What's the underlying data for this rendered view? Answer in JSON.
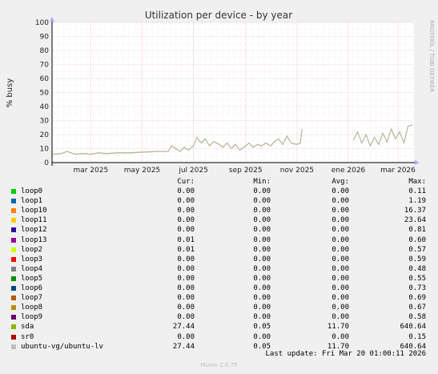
{
  "chart_data": {
    "type": "line",
    "title": "Utilization per device - by year",
    "ylabel": "% busy",
    "ylim": [
      0,
      100
    ],
    "yticks": [
      0,
      10,
      20,
      30,
      40,
      50,
      60,
      70,
      80,
      90,
      100
    ],
    "xlim": [
      "2025-01-14",
      "2026-03-20"
    ],
    "xticks": [
      {
        "date": "2025-03-01",
        "label": "mar 2025"
      },
      {
        "date": "2025-05-01",
        "label": "may 2025"
      },
      {
        "date": "2025-07-01",
        "label": "jul 2025"
      },
      {
        "date": "2025-09-01",
        "label": "sep 2025"
      },
      {
        "date": "2025-11-01",
        "label": "nov 2025"
      },
      {
        "date": "2026-01-01",
        "label": "ene 2026"
      },
      {
        "date": "2026-03-01",
        "label": "mar 2026"
      }
    ],
    "grid": true,
    "series": [
      {
        "name": "sda",
        "color": "#99a320",
        "segments": [
          [
            [
              "2025-01-15",
              6
            ],
            [
              "2025-01-25",
              6.5
            ],
            [
              "2025-02-01",
              8
            ],
            [
              "2025-02-10",
              6
            ],
            [
              "2025-02-20",
              6.5
            ],
            [
              "2025-03-01",
              6
            ],
            [
              "2025-03-10",
              7
            ],
            [
              "2025-03-20",
              6.5
            ],
            [
              "2025-04-01",
              7
            ],
            [
              "2025-04-15",
              7
            ],
            [
              "2025-05-01",
              7.5
            ],
            [
              "2025-05-20",
              8
            ],
            [
              "2025-06-01",
              8
            ],
            [
              "2025-06-05",
              12
            ],
            [
              "2025-06-10",
              10
            ],
            [
              "2025-06-15",
              8
            ],
            [
              "2025-06-20",
              11
            ],
            [
              "2025-06-25",
              9
            ],
            [
              "2025-07-01",
              12
            ],
            [
              "2025-07-05",
              18
            ],
            [
              "2025-07-10",
              14
            ],
            [
              "2025-07-15",
              17
            ],
            [
              "2025-07-20",
              12
            ],
            [
              "2025-07-25",
              15
            ],
            [
              "2025-08-01",
              13
            ],
            [
              "2025-08-05",
              11
            ],
            [
              "2025-08-10",
              14
            ],
            [
              "2025-08-15",
              10
            ],
            [
              "2025-08-20",
              13
            ],
            [
              "2025-08-25",
              9
            ],
            [
              "2025-09-01",
              12
            ],
            [
              "2025-09-05",
              14
            ],
            [
              "2025-09-10",
              11
            ],
            [
              "2025-09-15",
              13
            ],
            [
              "2025-09-20",
              12
            ],
            [
              "2025-09-25",
              14
            ],
            [
              "2025-10-01",
              12
            ],
            [
              "2025-10-05",
              15
            ],
            [
              "2025-10-10",
              17
            ],
            [
              "2025-10-15",
              13
            ],
            [
              "2025-10-20",
              19
            ],
            [
              "2025-10-25",
              14
            ],
            [
              "2025-11-01",
              13
            ],
            [
              "2025-11-05",
              14
            ],
            [
              "2025-11-07",
              24
            ]
          ],
          [
            [
              "2026-01-07",
              16
            ],
            [
              "2026-01-12",
              22
            ],
            [
              "2026-01-17",
              14
            ],
            [
              "2026-01-22",
              20
            ],
            [
              "2026-01-27",
              12
            ],
            [
              "2026-02-01",
              18
            ],
            [
              "2026-02-06",
              13
            ],
            [
              "2026-02-11",
              21
            ],
            [
              "2026-02-16",
              15
            ],
            [
              "2026-02-21",
              24
            ],
            [
              "2026-02-26",
              17
            ],
            [
              "2026-03-03",
              22
            ],
            [
              "2026-03-08",
              14
            ],
            [
              "2026-03-13",
              26
            ],
            [
              "2026-03-18",
              27
            ]
          ]
        ]
      },
      {
        "name": "ubuntu-vg/ubuntu-lv",
        "color": "#b8b8b8",
        "segments": [
          [
            [
              "2025-01-15",
              5.8
            ],
            [
              "2025-01-25",
              6.3
            ],
            [
              "2025-02-01",
              7.8
            ],
            [
              "2025-02-10",
              5.8
            ],
            [
              "2025-02-20",
              6.3
            ],
            [
              "2025-03-01",
              5.8
            ],
            [
              "2025-03-10",
              6.8
            ],
            [
              "2025-03-20",
              6.3
            ],
            [
              "2025-04-01",
              6.8
            ],
            [
              "2025-04-15",
              6.8
            ],
            [
              "2025-05-01",
              7.3
            ],
            [
              "2025-05-20",
              7.8
            ],
            [
              "2025-06-01",
              7.8
            ],
            [
              "2025-06-05",
              11.8
            ],
            [
              "2025-06-10",
              9.8
            ],
            [
              "2025-06-15",
              7.8
            ],
            [
              "2025-06-20",
              10.8
            ],
            [
              "2025-06-25",
              8.8
            ],
            [
              "2025-07-01",
              11.8
            ],
            [
              "2025-07-05",
              17.8
            ],
            [
              "2025-07-10",
              13.8
            ],
            [
              "2025-07-15",
              16.8
            ],
            [
              "2025-07-20",
              11.8
            ],
            [
              "2025-07-25",
              14.8
            ],
            [
              "2025-08-01",
              12.8
            ],
            [
              "2025-08-05",
              10.8
            ],
            [
              "2025-08-10",
              13.8
            ],
            [
              "2025-08-15",
              9.8
            ],
            [
              "2025-08-20",
              12.8
            ],
            [
              "2025-08-25",
              8.8
            ],
            [
              "2025-09-01",
              11.8
            ],
            [
              "2025-09-05",
              13.8
            ],
            [
              "2025-09-10",
              10.8
            ],
            [
              "2025-09-15",
              12.8
            ],
            [
              "2025-09-20",
              11.8
            ],
            [
              "2025-09-25",
              13.8
            ],
            [
              "2025-10-01",
              11.8
            ],
            [
              "2025-10-05",
              14.8
            ],
            [
              "2025-10-10",
              16.8
            ],
            [
              "2025-10-15",
              12.8
            ],
            [
              "2025-10-20",
              18.8
            ],
            [
              "2025-10-25",
              13.8
            ],
            [
              "2025-11-01",
              12.8
            ],
            [
              "2025-11-05",
              13.8
            ],
            [
              "2025-11-07",
              23.8
            ]
          ],
          [
            [
              "2026-01-07",
              15.8
            ],
            [
              "2026-01-12",
              21.8
            ],
            [
              "2026-01-17",
              13.8
            ],
            [
              "2026-01-22",
              19.8
            ],
            [
              "2026-01-27",
              11.8
            ],
            [
              "2026-02-01",
              17.8
            ],
            [
              "2026-02-06",
              12.8
            ],
            [
              "2026-02-11",
              20.8
            ],
            [
              "2026-02-16",
              14.8
            ],
            [
              "2026-02-21",
              23.8
            ],
            [
              "2026-02-26",
              16.8
            ],
            [
              "2026-03-03",
              21.8
            ],
            [
              "2026-03-08",
              13.8
            ],
            [
              "2026-03-13",
              25.8
            ],
            [
              "2026-03-18",
              26.8
            ]
          ]
        ]
      }
    ]
  },
  "side_label": "RRDTOOL / TOBI OETIKER",
  "legend": {
    "headers": {
      "cur": "Cur:",
      "min": "Min:",
      "avg": "Avg:",
      "max": "Max:"
    },
    "rows": [
      {
        "name": "loop0",
        "color": "#00cc00",
        "cur": "0.00",
        "min": "0.00",
        "avg": "0.00",
        "max": "0.11"
      },
      {
        "name": "loop1",
        "color": "#0066b3",
        "cur": "0.00",
        "min": "0.00",
        "avg": "0.00",
        "max": "1.19"
      },
      {
        "name": "loop10",
        "color": "#ff8000",
        "cur": "0.00",
        "min": "0.00",
        "avg": "0.00",
        "max": "16.37"
      },
      {
        "name": "loop11",
        "color": "#ffcc00",
        "cur": "0.00",
        "min": "0.00",
        "avg": "0.00",
        "max": "23.64"
      },
      {
        "name": "loop12",
        "color": "#330099",
        "cur": "0.00",
        "min": "0.00",
        "avg": "0.00",
        "max": "0.81"
      },
      {
        "name": "loop13",
        "color": "#990099",
        "cur": "0.01",
        "min": "0.00",
        "avg": "0.00",
        "max": "0.60"
      },
      {
        "name": "loop2",
        "color": "#ccff00",
        "cur": "0.01",
        "min": "0.00",
        "avg": "0.00",
        "max": "0.57"
      },
      {
        "name": "loop3",
        "color": "#ff0000",
        "cur": "0.00",
        "min": "0.00",
        "avg": "0.00",
        "max": "0.59"
      },
      {
        "name": "loop4",
        "color": "#808080",
        "cur": "0.00",
        "min": "0.00",
        "avg": "0.00",
        "max": "0.48"
      },
      {
        "name": "loop5",
        "color": "#008f00",
        "cur": "0.00",
        "min": "0.00",
        "avg": "0.00",
        "max": "0.55"
      },
      {
        "name": "loop6",
        "color": "#00487d",
        "cur": "0.00",
        "min": "0.00",
        "avg": "0.00",
        "max": "0.73"
      },
      {
        "name": "loop7",
        "color": "#b35a00",
        "cur": "0.00",
        "min": "0.00",
        "avg": "0.00",
        "max": "0.69"
      },
      {
        "name": "loop8",
        "color": "#b38f00",
        "cur": "0.00",
        "min": "0.00",
        "avg": "0.00",
        "max": "0.67"
      },
      {
        "name": "loop9",
        "color": "#6b006b",
        "cur": "0.00",
        "min": "0.00",
        "avg": "0.00",
        "max": "0.58"
      },
      {
        "name": "sda",
        "color": "#8fb300",
        "cur": "27.44",
        "min": "0.05",
        "avg": "11.70",
        "max": "640.64"
      },
      {
        "name": "sr0",
        "color": "#b30000",
        "cur": "0.00",
        "min": "0.00",
        "avg": "0.00",
        "max": "0.15"
      },
      {
        "name": "ubuntu-vg/ubuntu-lv",
        "color": "#bebebe",
        "cur": "27.44",
        "min": "0.05",
        "avg": "11.70",
        "max": "640.64"
      }
    ]
  },
  "last_update": "Last update: Fri Mar 20 01:00:11 2026",
  "footer": "Munin 2.0.75"
}
